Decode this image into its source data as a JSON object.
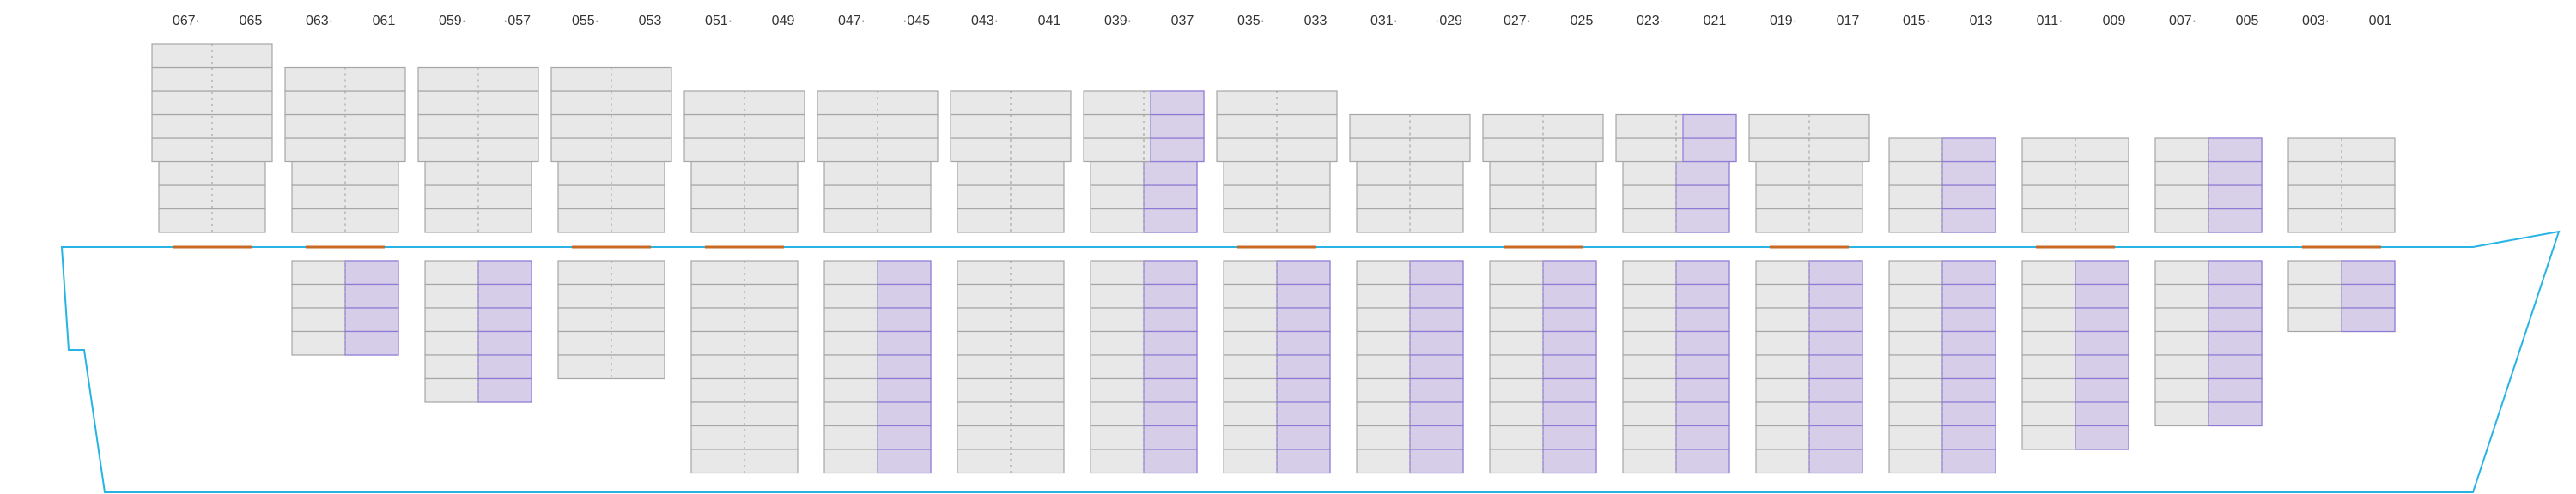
{
  "colors": {
    "slot_fill": "#e8e8e8",
    "slot_stroke": "#a6a6a6",
    "centerline": "#9a9a9a",
    "highlight_fill": "#d6cde9",
    "highlight_stroke": "#8f79d6",
    "hull": "#27b4e4",
    "hatch_cover": "#c86a24",
    "label": "#333333"
  },
  "bays": [
    {
      "left": "067·",
      "right": "065",
      "deck_tiers": 8,
      "deck_highlight": false,
      "hold_tiers": 0,
      "hold_highlight": false,
      "hatch": true
    },
    {
      "left": "063·",
      "right": "061",
      "deck_tiers": 7,
      "deck_highlight": false,
      "hold_tiers": 4,
      "hold_highlight": true,
      "hatch": true
    },
    {
      "left": "059·",
      "right": "·057",
      "deck_tiers": 7,
      "deck_highlight": false,
      "hold_tiers": 6,
      "hold_highlight": true,
      "hatch": false
    },
    {
      "left": "055·",
      "right": "053",
      "deck_tiers": 7,
      "deck_highlight": false,
      "hold_tiers": 5,
      "hold_highlight": false,
      "hatch": true
    },
    {
      "left": "051·",
      "right": "049",
      "deck_tiers": 6,
      "deck_highlight": false,
      "hold_tiers": 9,
      "hold_highlight": false,
      "hatch": true
    },
    {
      "left": "047·",
      "right": "·045",
      "deck_tiers": 6,
      "deck_highlight": false,
      "hold_tiers": 9,
      "hold_highlight": true,
      "hatch": false
    },
    {
      "left": "043·",
      "right": "041",
      "deck_tiers": 6,
      "deck_highlight": false,
      "hold_tiers": 9,
      "hold_highlight": false,
      "hatch": false
    },
    {
      "left": "039·",
      "right": "037",
      "deck_tiers": 6,
      "deck_highlight": true,
      "hold_tiers": 9,
      "hold_highlight": true,
      "hatch": false
    },
    {
      "left": "035·",
      "right": "033",
      "deck_tiers": 6,
      "deck_highlight": false,
      "hold_tiers": 9,
      "hold_highlight": true,
      "hatch": true
    },
    {
      "left": "031·",
      "right": "·029",
      "deck_tiers": 5,
      "deck_highlight": false,
      "hold_tiers": 9,
      "hold_highlight": true,
      "hatch": false
    },
    {
      "left": "027·",
      "right": "025",
      "deck_tiers": 5,
      "deck_highlight": false,
      "hold_tiers": 9,
      "hold_highlight": true,
      "hatch": true
    },
    {
      "left": "023·",
      "right": "021",
      "deck_tiers": 5,
      "deck_highlight": true,
      "hold_tiers": 9,
      "hold_highlight": true,
      "hatch": false
    },
    {
      "left": "019·",
      "right": "017",
      "deck_tiers": 5,
      "deck_highlight": false,
      "hold_tiers": 9,
      "hold_highlight": true,
      "hatch": true
    },
    {
      "left": "015·",
      "right": "013",
      "deck_tiers": 4,
      "deck_highlight": true,
      "hold_tiers": 9,
      "hold_highlight": true,
      "hatch": false
    },
    {
      "left": "011·",
      "right": "009",
      "deck_tiers": 4,
      "deck_highlight": false,
      "hold_tiers": 8,
      "hold_highlight": true,
      "hatch": true
    },
    {
      "left": "007·",
      "right": "005",
      "deck_tiers": 4,
      "deck_highlight": true,
      "hold_tiers": 7,
      "hold_highlight": true,
      "hatch": false
    },
    {
      "left": "003·",
      "right": "001",
      "deck_tiers": 4,
      "deck_highlight": false,
      "hold_tiers": 3,
      "hold_highlight": true,
      "hatch": true
    }
  ]
}
